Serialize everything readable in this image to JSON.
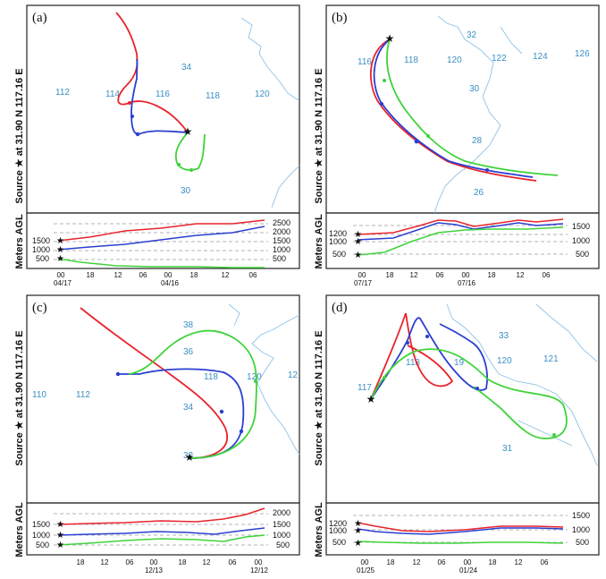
{
  "figure": {
    "source_text": "Source ★ at  31.90 N  117.16 E",
    "height_axis_label": "Meters AGL",
    "colors": {
      "red": "#e8242c",
      "blue": "#2a3fd1",
      "green": "#3fd33a",
      "coast": "#8fc3e6",
      "grid_label": "#3a8fc4"
    }
  },
  "panels": [
    {
      "letter": "(a)",
      "grid_labels": [
        "34",
        "112",
        "114",
        "116",
        "118",
        "120",
        "30"
      ],
      "left_height_labels": [
        "1500",
        "1000",
        "500"
      ],
      "right_height_labels": [
        "2500",
        "2000",
        "1500",
        "1000",
        "500"
      ],
      "time_ticks": [
        "00",
        "18",
        "12",
        "06",
        "00",
        "18",
        "12",
        "06"
      ],
      "date_labels": [
        "04/17",
        "04/16"
      ]
    },
    {
      "letter": "(b)",
      "grid_labels": [
        "32",
        "116",
        "118",
        "120",
        "122",
        "124",
        "126",
        "30",
        "28",
        "26"
      ],
      "left_height_labels": [
        "1200",
        "1000",
        "500"
      ],
      "right_height_labels": [
        "1500",
        "1000",
        "500"
      ],
      "time_ticks": [
        "00",
        "18",
        "12",
        "06",
        "00",
        "18",
        "12",
        "06"
      ],
      "date_labels": [
        "07/17",
        "07/16"
      ]
    },
    {
      "letter": "(c)",
      "grid_labels": [
        "38",
        "36",
        "110",
        "112",
        "118",
        "120",
        "12",
        "34",
        "32"
      ],
      "left_height_labels": [
        "1500",
        "1000",
        "500"
      ],
      "right_height_labels": [
        "2000",
        "1500",
        "1000",
        "500"
      ],
      "time_ticks": [
        "18",
        "12",
        "06",
        "00",
        "18",
        "12",
        "06",
        "00"
      ],
      "date_labels": [
        "12/13",
        "12/12"
      ]
    },
    {
      "letter": "(d)",
      "grid_labels": [
        "117",
        "118",
        "33",
        "19",
        "120",
        "121",
        "31"
      ],
      "left_height_labels": [
        "1200",
        "1000",
        "500"
      ],
      "right_height_labels": [
        "1500",
        "1000",
        "500"
      ],
      "time_ticks": [
        "00",
        "18",
        "12",
        "06",
        "00",
        "18",
        "12",
        "06"
      ],
      "date_labels": [
        "01/25",
        "01/24"
      ]
    }
  ]
}
